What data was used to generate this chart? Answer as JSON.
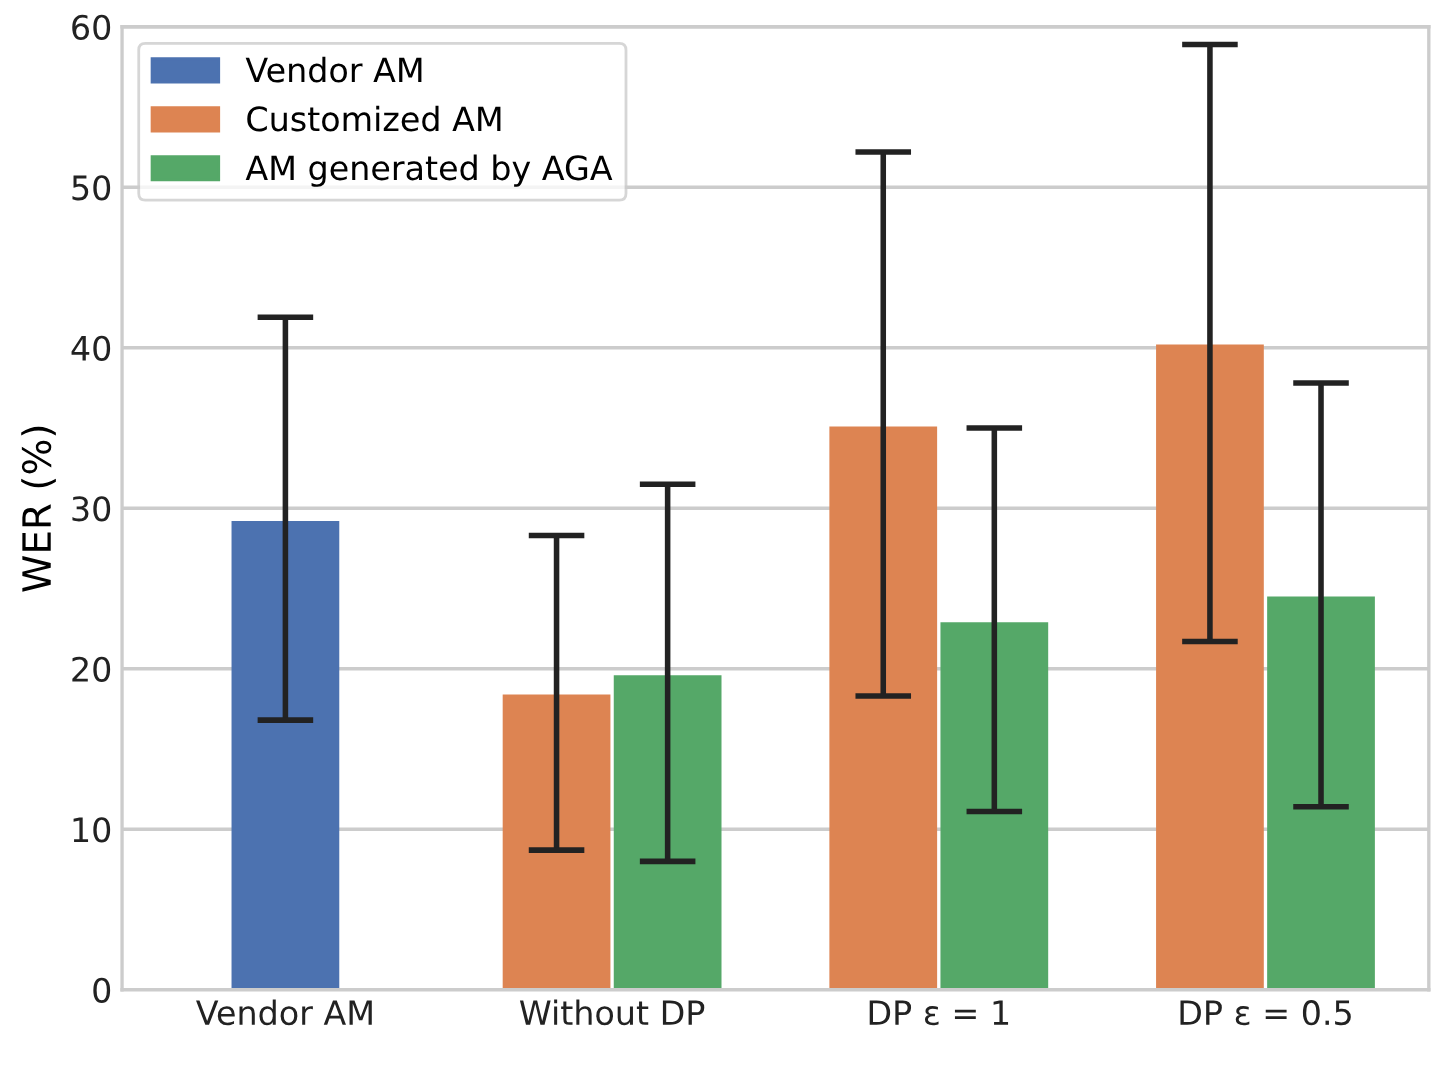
{
  "chart_data": {
    "type": "bar",
    "ylabel": "WER (%)",
    "categories": [
      "Vendor AM",
      "Without DP",
      "DP ε = 1",
      "DP ε = 0.5"
    ],
    "series": [
      {
        "name": "Vendor AM",
        "color": "#4c72b0",
        "values": [
          29.2,
          null,
          null,
          null
        ],
        "errors": [
          [
            16.8,
            41.9
          ],
          null,
          null,
          null
        ]
      },
      {
        "name": "Customized AM",
        "color": "#dd8452",
        "values": [
          null,
          18.4,
          35.1,
          40.2
        ],
        "errors": [
          null,
          [
            8.7,
            28.3
          ],
          [
            18.3,
            52.2
          ],
          [
            21.7,
            58.9
          ]
        ]
      },
      {
        "name": "AM generated by AGA",
        "color": "#55a868",
        "values": [
          null,
          19.6,
          22.9,
          24.5
        ],
        "errors": [
          null,
          [
            8.0,
            31.5
          ],
          [
            11.1,
            35.0
          ],
          [
            11.4,
            37.8
          ]
        ]
      }
    ],
    "ylim": [
      0,
      60
    ],
    "yticks": [
      0,
      10,
      20,
      30,
      40,
      50,
      60
    ],
    "grid": "y",
    "legend": "top left"
  }
}
